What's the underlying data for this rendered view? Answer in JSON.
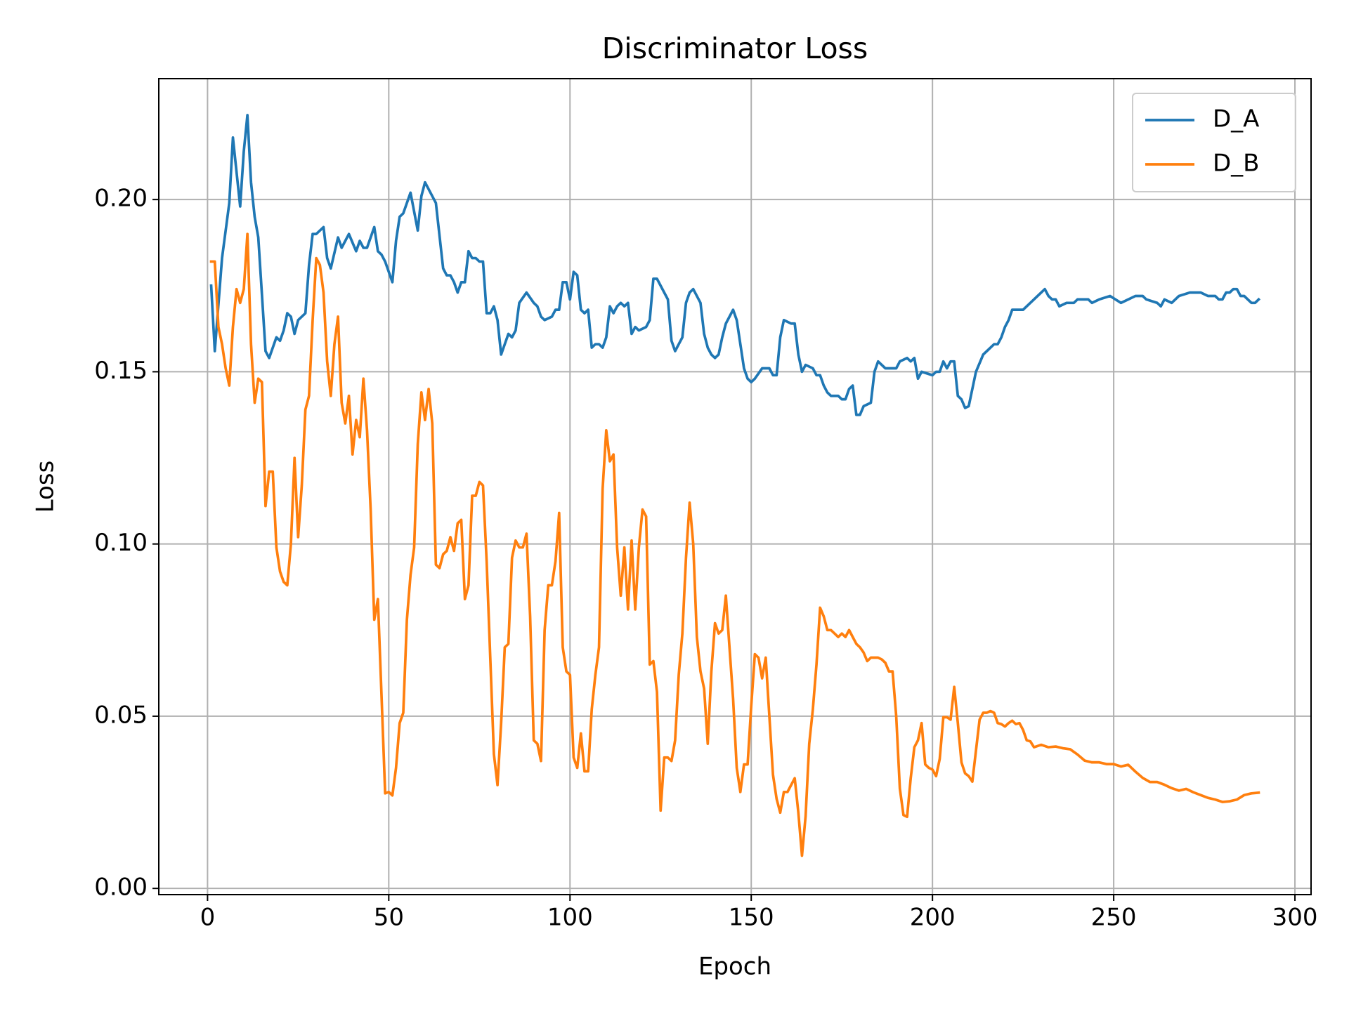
{
  "chart_data": {
    "type": "line",
    "title": "Discriminator Loss",
    "x_label": "Epoch",
    "y_label": "Loss",
    "xlim": [
      -13.45,
      304.45
    ],
    "ylim": [
      -0.0018,
      0.2351
    ],
    "xticks": [
      0,
      50,
      100,
      150,
      200,
      250,
      300
    ],
    "yticks": [
      {
        "value": 0,
        "label": "0.00"
      },
      {
        "value": 0.05,
        "label": "0.05"
      },
      {
        "value": 0.1,
        "label": "0.10"
      },
      {
        "value": 0.15,
        "label": "0.15"
      },
      {
        "value": 0.2,
        "label": "0.20"
      }
    ],
    "grid": true,
    "legend_loc": "upper right",
    "series": [
      {
        "name": "D_A",
        "color": "#1f77b4",
        "x": [
          1,
          2,
          4,
          6,
          7,
          9,
          10,
          11,
          12,
          13,
          14,
          16,
          17,
          19,
          20,
          21,
          22,
          23,
          24,
          25,
          27,
          28,
          29,
          30,
          32,
          33,
          34,
          36,
          37,
          39,
          41,
          42,
          43,
          44,
          46,
          47,
          48,
          49,
          50,
          51,
          52,
          53,
          54,
          56,
          58,
          59,
          60,
          61,
          63,
          65,
          66,
          67,
          68,
          69,
          70,
          71,
          72,
          73,
          74,
          75,
          76,
          77,
          78,
          79,
          80,
          81,
          82,
          83,
          84,
          85,
          86,
          88,
          90,
          91,
          92,
          93,
          95,
          96,
          97,
          98,
          99,
          100,
          101,
          102,
          103,
          104,
          105,
          106,
          107,
          108,
          109,
          110,
          111,
          112,
          113,
          114,
          115,
          116,
          117,
          118,
          119,
          121,
          122,
          123,
          124,
          126,
          127,
          128,
          129,
          130,
          131,
          132,
          133,
          134,
          136,
          137,
          138,
          139,
          140,
          141,
          142,
          143,
          145,
          146,
          147,
          148,
          149,
          150,
          151,
          153,
          155,
          156,
          157,
          158,
          159,
          161,
          162,
          163,
          164,
          165,
          167,
          168,
          169,
          170,
          171,
          172,
          174,
          175,
          176,
          177,
          178,
          179,
          180,
          181,
          183,
          184,
          185,
          187,
          190,
          191,
          193,
          194,
          195,
          196,
          197,
          200,
          201,
          202,
          203,
          204,
          205,
          206,
          207,
          208,
          209,
          210,
          212,
          214,
          215,
          217,
          218,
          219,
          220,
          221,
          222,
          224,
          225,
          227,
          229,
          231,
          232,
          233,
          234,
          235,
          237,
          239,
          240,
          243,
          244,
          246,
          249,
          252,
          254,
          256,
          257,
          258,
          259,
          262,
          263,
          264,
          266,
          268,
          271,
          272,
          274,
          276,
          278,
          279,
          280,
          281,
          282,
          283,
          284,
          285,
          286,
          288,
          289,
          290
        ],
        "values": [
          0.175,
          0.156,
          0.183,
          0.199,
          0.218,
          0.198,
          0.214,
          0.2245,
          0.205,
          0.195,
          0.189,
          0.156,
          0.154,
          0.16,
          0.159,
          0.162,
          0.167,
          0.166,
          0.161,
          0.165,
          0.167,
          0.181,
          0.19,
          0.19,
          0.192,
          0.183,
          0.18,
          0.189,
          0.186,
          0.19,
          0.185,
          0.188,
          0.186,
          0.186,
          0.192,
          0.185,
          0.184,
          0.182,
          0.179,
          0.176,
          0.188,
          0.195,
          0.196,
          0.202,
          0.191,
          0.201,
          0.205,
          0.203,
          0.199,
          0.18,
          0.178,
          0.178,
          0.176,
          0.173,
          0.176,
          0.176,
          0.185,
          0.183,
          0.183,
          0.182,
          0.182,
          0.167,
          0.167,
          0.169,
          0.165,
          0.155,
          0.158,
          0.161,
          0.16,
          0.162,
          0.17,
          0.173,
          0.17,
          0.169,
          0.166,
          0.165,
          0.166,
          0.168,
          0.168,
          0.176,
          0.176,
          0.171,
          0.179,
          0.178,
          0.168,
          0.167,
          0.168,
          0.157,
          0.158,
          0.158,
          0.157,
          0.16,
          0.169,
          0.167,
          0.169,
          0.17,
          0.169,
          0.17,
          0.161,
          0.163,
          0.162,
          0.163,
          0.165,
          0.177,
          0.177,
          0.173,
          0.171,
          0.159,
          0.156,
          0.158,
          0.16,
          0.17,
          0.173,
          0.174,
          0.17,
          0.161,
          0.157,
          0.155,
          0.154,
          0.155,
          0.16,
          0.164,
          0.168,
          0.165,
          0.158,
          0.151,
          0.148,
          0.147,
          0.148,
          0.151,
          0.151,
          0.149,
          0.149,
          0.16,
          0.165,
          0.164,
          0.164,
          0.155,
          0.15,
          0.152,
          0.151,
          0.149,
          0.149,
          0.146,
          0.144,
          0.143,
          0.143,
          0.142,
          0.142,
          0.145,
          0.146,
          0.1375,
          0.1375,
          0.14,
          0.141,
          0.15,
          0.153,
          0.151,
          0.151,
          0.153,
          0.154,
          0.153,
          0.154,
          0.148,
          0.15,
          0.149,
          0.15,
          0.15,
          0.153,
          0.151,
          0.153,
          0.153,
          0.143,
          0.142,
          0.1395,
          0.14,
          0.15,
          0.155,
          0.156,
          0.158,
          0.158,
          0.16,
          0.163,
          0.165,
          0.168,
          0.168,
          0.168,
          0.17,
          0.172,
          0.174,
          0.172,
          0.171,
          0.171,
          0.169,
          0.17,
          0.17,
          0.171,
          0.171,
          0.17,
          0.171,
          0.172,
          0.17,
          0.171,
          0.172,
          0.172,
          0.172,
          0.171,
          0.17,
          0.169,
          0.171,
          0.17,
          0.172,
          0.173,
          0.173,
          0.173,
          0.172,
          0.172,
          0.171,
          0.171,
          0.173,
          0.173,
          0.174,
          0.174,
          0.172,
          0.172,
          0.17,
          0.17,
          0.171
        ]
      },
      {
        "name": "D_B",
        "color": "#ff7f0e",
        "x": [
          1,
          2,
          3,
          4,
          5,
          6,
          7,
          8,
          9,
          10,
          11,
          12,
          13,
          14,
          15,
          16,
          17,
          18,
          19,
          20,
          21,
          22,
          23,
          24,
          25,
          26,
          27,
          28,
          29,
          30,
          31,
          32,
          33,
          34,
          35,
          36,
          37,
          38,
          39,
          40,
          41,
          42,
          43,
          44,
          45,
          46,
          47,
          48,
          49,
          50,
          51,
          52,
          53,
          54,
          55,
          56,
          57,
          58,
          59,
          60,
          61,
          62,
          63,
          64,
          65,
          66,
          67,
          68,
          69,
          70,
          71,
          72,
          73,
          74,
          75,
          76,
          77,
          78,
          79,
          80,
          81,
          82,
          83,
          84,
          85,
          86,
          87,
          88,
          89,
          90,
          91,
          92,
          93,
          94,
          95,
          96,
          97,
          98,
          99,
          100,
          101,
          102,
          103,
          104,
          105,
          106,
          107,
          108,
          109,
          110,
          111,
          112,
          113,
          114,
          115,
          116,
          117,
          118,
          119,
          120,
          121,
          122,
          123,
          124,
          125,
          126,
          127,
          128,
          129,
          130,
          131,
          132,
          133,
          134,
          135,
          136,
          137,
          138,
          139,
          140,
          141,
          142,
          143,
          144,
          145,
          146,
          147,
          148,
          149,
          150,
          151,
          152,
          153,
          154,
          155,
          156,
          157,
          158,
          159,
          160,
          161,
          162,
          163,
          164,
          165,
          166,
          167,
          168,
          169,
          170,
          171,
          172,
          173,
          174,
          175,
          176,
          177,
          178,
          179,
          180,
          181,
          182,
          183,
          184,
          185,
          186,
          187,
          188,
          189,
          190,
          191,
          192,
          193,
          194,
          195,
          196,
          197,
          198,
          199,
          200,
          201,
          202,
          203,
          204,
          205,
          206,
          207,
          208,
          209,
          210,
          211,
          212,
          213,
          214,
          215,
          216,
          217,
          218,
          219,
          220,
          221,
          222,
          223,
          224,
          225,
          226,
          227,
          228,
          230,
          232,
          234,
          236,
          238,
          240,
          242,
          244,
          246,
          248,
          250,
          252,
          254,
          256,
          258,
          260,
          262,
          264,
          266,
          268,
          270,
          272,
          274,
          276,
          278,
          280,
          282,
          284,
          286,
          288,
          290
        ],
        "values": [
          0.182,
          0.182,
          0.163,
          0.158,
          0.151,
          0.146,
          0.163,
          0.174,
          0.17,
          0.174,
          0.19,
          0.158,
          0.141,
          0.148,
          0.147,
          0.111,
          0.121,
          0.121,
          0.099,
          0.092,
          0.089,
          0.088,
          0.1,
          0.125,
          0.102,
          0.117,
          0.139,
          0.143,
          0.165,
          0.183,
          0.181,
          0.173,
          0.153,
          0.143,
          0.158,
          0.166,
          0.141,
          0.135,
          0.143,
          0.126,
          0.136,
          0.131,
          0.148,
          0.133,
          0.11,
          0.078,
          0.084,
          0.056,
          0.0276,
          0.028,
          0.027,
          0.035,
          0.048,
          0.051,
          0.078,
          0.091,
          0.099,
          0.129,
          0.144,
          0.136,
          0.145,
          0.135,
          0.094,
          0.093,
          0.097,
          0.098,
          0.102,
          0.098,
          0.106,
          0.107,
          0.084,
          0.088,
          0.114,
          0.114,
          0.118,
          0.117,
          0.095,
          0.067,
          0.039,
          0.03,
          0.048,
          0.07,
          0.071,
          0.096,
          0.101,
          0.099,
          0.099,
          0.103,
          0.079,
          0.043,
          0.042,
          0.037,
          0.075,
          0.088,
          0.088,
          0.095,
          0.109,
          0.07,
          0.063,
          0.062,
          0.038,
          0.035,
          0.045,
          0.034,
          0.034,
          0.052,
          0.062,
          0.07,
          0.116,
          0.133,
          0.124,
          0.126,
          0.099,
          0.085,
          0.099,
          0.081,
          0.101,
          0.081,
          0.099,
          0.11,
          0.108,
          0.065,
          0.066,
          0.057,
          0.0226,
          0.038,
          0.038,
          0.037,
          0.043,
          0.062,
          0.074,
          0.096,
          0.112,
          0.1,
          0.073,
          0.063,
          0.058,
          0.042,
          0.063,
          0.077,
          0.074,
          0.075,
          0.085,
          0.07,
          0.055,
          0.035,
          0.028,
          0.036,
          0.036,
          0.053,
          0.068,
          0.067,
          0.061,
          0.067,
          0.05,
          0.033,
          0.026,
          0.022,
          0.028,
          0.028,
          0.03,
          0.032,
          0.022,
          0.0095,
          0.021,
          0.042,
          0.052,
          0.065,
          0.0815,
          0.079,
          0.075,
          0.075,
          0.074,
          0.073,
          0.074,
          0.073,
          0.075,
          0.073,
          0.071,
          0.07,
          0.0685,
          0.066,
          0.067,
          0.067,
          0.067,
          0.0665,
          0.0655,
          0.063,
          0.063,
          0.05,
          0.029,
          0.0213,
          0.0208,
          0.032,
          0.041,
          0.043,
          0.048,
          0.036,
          0.035,
          0.0345,
          0.0326,
          0.0376,
          0.0497,
          0.0497,
          0.049,
          0.0585,
          0.048,
          0.0366,
          0.0334,
          0.0326,
          0.031,
          0.04,
          0.049,
          0.051,
          0.051,
          0.0515,
          0.051,
          0.048,
          0.0477,
          0.047,
          0.048,
          0.0487,
          0.0477,
          0.048,
          0.046,
          0.043,
          0.0427,
          0.041,
          0.0417,
          0.041,
          0.0412,
          0.0407,
          0.0404,
          0.0389,
          0.0371,
          0.0366,
          0.0366,
          0.0361,
          0.0361,
          0.0354,
          0.0359,
          0.0339,
          0.0321,
          0.0309,
          0.0309,
          0.0301,
          0.0291,
          0.0284,
          0.0289,
          0.0279,
          0.0271,
          0.0263,
          0.0258,
          0.0251,
          0.0253,
          0.0258,
          0.0271,
          0.0276,
          0.0278
        ]
      }
    ]
  }
}
